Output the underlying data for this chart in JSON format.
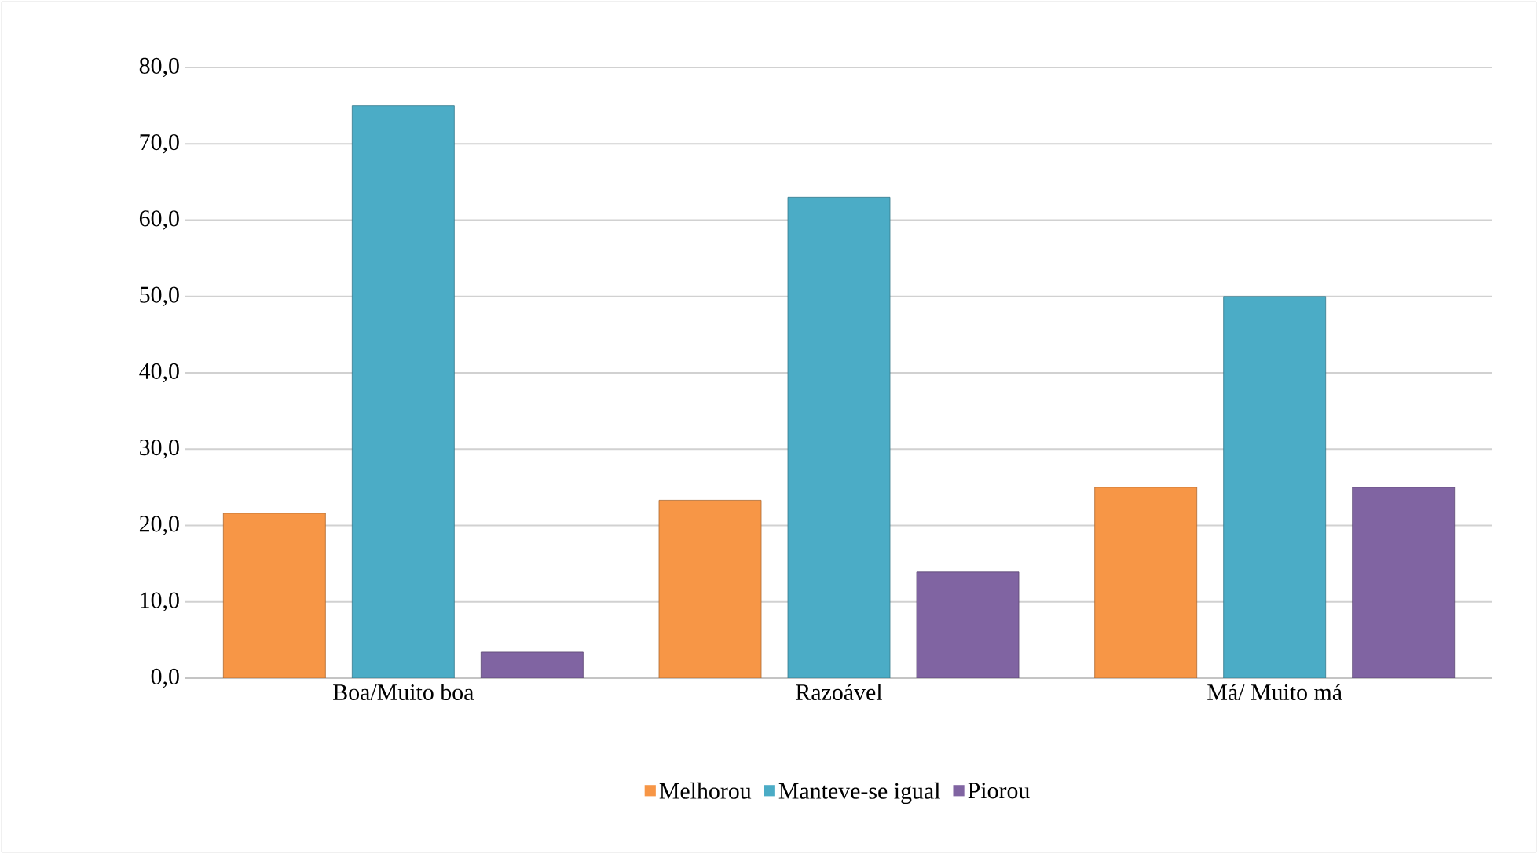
{
  "chart_data": {
    "type": "bar",
    "categories": [
      "Boa/Muito boa",
      "Razoável",
      "Má/ Muito má"
    ],
    "series": [
      {
        "name": "Melhorou",
        "color": "#f79646",
        "values": [
          21.6,
          23.3,
          25.0
        ]
      },
      {
        "name": "Manteve-se igual",
        "color": "#4bacc6",
        "values": [
          75.0,
          63.0,
          50.0
        ]
      },
      {
        "name": "Piorou",
        "color": "#8064a2",
        "values": [
          3.4,
          13.9,
          25.0
        ]
      }
    ],
    "ylim": [
      0,
      80
    ],
    "yticks": [
      {
        "value": 0,
        "label": "0,0"
      },
      {
        "value": 10,
        "label": "10,0"
      },
      {
        "value": 20,
        "label": "20,0"
      },
      {
        "value": 30,
        "label": "30,0"
      },
      {
        "value": 40,
        "label": "40,0"
      },
      {
        "value": 50,
        "label": "50,0"
      },
      {
        "value": 60,
        "label": "60,0"
      },
      {
        "value": 70,
        "label": "70,0"
      },
      {
        "value": 80,
        "label": "80,0"
      }
    ],
    "grid": "y",
    "legend": "bottom"
  }
}
